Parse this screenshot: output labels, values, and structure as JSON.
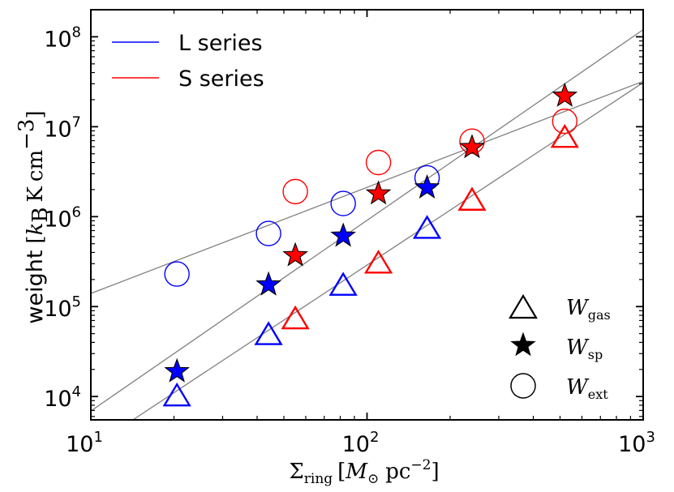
{
  "chart_data": {
    "type": "scatter",
    "xscale": "log",
    "yscale": "log",
    "xlim": [
      10,
      1000
    ],
    "ylim": [
      5500,
      200000000
    ],
    "xlabel": "Σring [M⊙ pc−2]",
    "xlabel_parts": {
      "base": "Σ",
      "sub": "ring",
      "bracket_content": "M",
      "sun_sub": "⊙",
      "unit": "pc",
      "unit_exp": "−2"
    },
    "ylabel": "weight [kB K cm−3]",
    "ylabel_parts": {
      "word": "weight",
      "k": "k",
      "k_sub": "B",
      "unit1": "K",
      "unit2": "cm",
      "unit2_exp": "−3"
    },
    "xticks": [
      {
        "value": 10,
        "base": "10",
        "exp": "1"
      },
      {
        "value": 100,
        "base": "10",
        "exp": "2"
      },
      {
        "value": 1000,
        "base": "10",
        "exp": "3"
      }
    ],
    "yticks": [
      {
        "value": 10000,
        "base": "10",
        "exp": "4"
      },
      {
        "value": 100000,
        "base": "10",
        "exp": "5"
      },
      {
        "value": 1000000,
        "base": "10",
        "exp": "6"
      },
      {
        "value": 10000000,
        "base": "10",
        "exp": "7"
      },
      {
        "value": 100000000,
        "base": "10",
        "exp": "8"
      }
    ],
    "series": [
      {
        "name": "L series",
        "color": "#0000ff",
        "gas": [
          [
            20.5,
            10000
          ],
          [
            44,
            48000
          ],
          [
            82,
            170000
          ],
          [
            165,
            730000
          ]
        ],
        "sp": [
          [
            20.5,
            19000
          ],
          [
            44,
            175000
          ],
          [
            82,
            610000
          ],
          [
            165,
            2100000
          ]
        ],
        "ext": [
          [
            20.5,
            230000
          ],
          [
            44,
            650000
          ],
          [
            82,
            1400000
          ],
          [
            165,
            2700000
          ]
        ]
      },
      {
        "name": "S series",
        "color": "#ff0000",
        "gas": [
          [
            55,
            72000
          ],
          [
            110,
            300000
          ],
          [
            240,
            1500000
          ],
          [
            520,
            7500000
          ]
        ],
        "sp": [
          [
            55,
            370000
          ],
          [
            110,
            1800000
          ],
          [
            240,
            5900000
          ],
          [
            520,
            22000000
          ]
        ],
        "ext": [
          [
            55,
            1900000
          ],
          [
            110,
            4000000
          ],
          [
            240,
            6900000
          ],
          [
            520,
            11500000
          ]
        ]
      }
    ],
    "fit_lines": [
      {
        "name": "gas fit",
        "color": "#808080",
        "points": [
          [
            14.2,
            5500
          ],
          [
            1000,
            31000000
          ]
        ]
      },
      {
        "name": "sp fit",
        "color": "#808080",
        "points": [
          [
            10,
            6900
          ],
          [
            1000,
            120000000
          ]
        ]
      },
      {
        "name": "ext fit",
        "color": "#808080",
        "points": [
          [
            10,
            140000
          ],
          [
            1000,
            32000000
          ]
        ]
      }
    ],
    "legend_lines": [
      {
        "label": "L series",
        "color": "#0000ff"
      },
      {
        "label": "S series",
        "color": "#ff0000"
      }
    ],
    "legend_markers": [
      {
        "symbol": "triangle",
        "label": "W",
        "sub": "gas"
      },
      {
        "symbol": "star",
        "label": "W",
        "sub": "sp"
      },
      {
        "symbol": "circle",
        "label": "W",
        "sub": "ext"
      }
    ]
  }
}
